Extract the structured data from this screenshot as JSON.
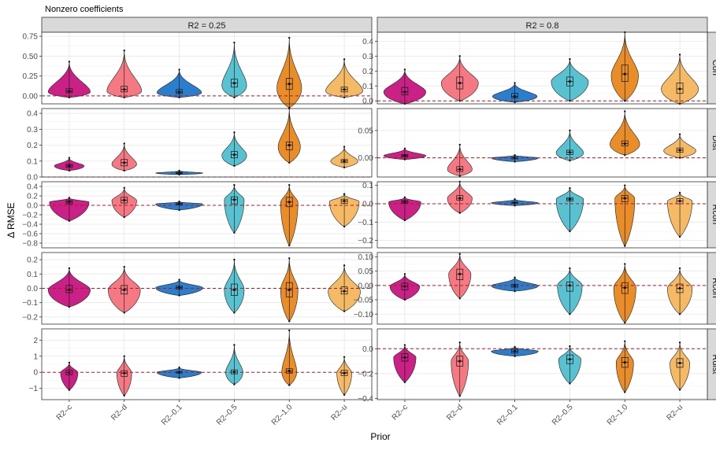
{
  "chart_data": {
    "type": "violin",
    "title": "Nonzero coefficients",
    "xlabel": "Prior",
    "ylabel": "Δ RMSE",
    "categories": [
      "R2–c",
      "R2–d",
      "R2–0.1",
      "R2–0.5",
      "R2–1.0",
      "R2–u"
    ],
    "column_facets": [
      "R2 = 0.25",
      "R2 = 0.8"
    ],
    "row_facets": [
      "Corr",
      "Dist",
      "Rcorr",
      "Rcorr",
      "Rdist"
    ],
    "reference_line": 0,
    "colors": [
      "#c7157f",
      "#f4727c",
      "#1f77c8",
      "#4fbfcf",
      "#e8871e",
      "#f4b65e"
    ],
    "panels": [
      {
        "col": 0,
        "row": 0,
        "ylim": [
          -0.1,
          0.8
        ],
        "ticks": [
          0.0,
          0.25,
          0.5,
          0.75
        ],
        "tick_labels": [
          "0.00",
          "0.25",
          "0.50",
          "0.75"
        ],
        "groups": [
          {
            "min": -0.02,
            "q1": 0.04,
            "median": 0.06,
            "q3": 0.09,
            "max": 0.43,
            "mode": 0.05,
            "width": 0.85
          },
          {
            "min": -0.02,
            "q1": 0.05,
            "median": 0.08,
            "q3": 0.12,
            "max": 0.57,
            "mode": 0.06,
            "width": 0.7
          },
          {
            "min": -0.02,
            "q1": 0.03,
            "median": 0.05,
            "q3": 0.08,
            "max": 0.33,
            "mode": 0.04,
            "width": 0.9
          },
          {
            "min": -0.02,
            "q1": 0.11,
            "median": 0.16,
            "q3": 0.21,
            "max": 0.67,
            "mode": 0.13,
            "width": 0.5
          },
          {
            "min": -0.15,
            "q1": 0.08,
            "median": 0.15,
            "q3": 0.22,
            "max": 0.73,
            "mode": 0.1,
            "width": 0.5
          },
          {
            "min": -0.02,
            "q1": 0.05,
            "median": 0.08,
            "q3": 0.11,
            "max": 0.46,
            "mode": 0.06,
            "width": 0.75
          }
        ]
      },
      {
        "col": 0,
        "row": 1,
        "ylim": [
          0.0,
          0.43
        ],
        "ticks": [
          0.0,
          0.1,
          0.2,
          0.3,
          0.4
        ],
        "tick_labels": [
          "0.0",
          "0.1",
          "0.2",
          "0.3",
          "0.4"
        ],
        "groups": [
          {
            "min": 0.04,
            "q1": 0.06,
            "median": 0.07,
            "q3": 0.08,
            "max": 0.12,
            "mode": 0.07,
            "width": 0.6
          },
          {
            "min": 0.04,
            "q1": 0.07,
            "median": 0.09,
            "q3": 0.11,
            "max": 0.21,
            "mode": 0.08,
            "width": 0.5
          },
          {
            "min": 0.015,
            "q1": 0.02,
            "median": 0.025,
            "q3": 0.03,
            "max": 0.04,
            "mode": 0.025,
            "width": 0.95
          },
          {
            "min": 0.07,
            "q1": 0.12,
            "median": 0.14,
            "q3": 0.16,
            "max": 0.28,
            "mode": 0.135,
            "width": 0.5
          },
          {
            "min": 0.09,
            "q1": 0.17,
            "median": 0.2,
            "q3": 0.22,
            "max": 0.43,
            "mode": 0.19,
            "width": 0.45
          },
          {
            "min": 0.06,
            "q1": 0.09,
            "median": 0.1,
            "q3": 0.11,
            "max": 0.19,
            "mode": 0.1,
            "width": 0.55
          }
        ]
      },
      {
        "col": 0,
        "row": 2,
        "ylim": [
          -0.9,
          0.5
        ],
        "ticks": [
          -0.8,
          -0.6,
          -0.4,
          -0.2,
          0.0,
          0.2,
          0.4
        ],
        "tick_labels": [
          "−0.8",
          "−0.6",
          "−0.4",
          "−0.2",
          "0.0",
          "0.2",
          "0.4"
        ],
        "groups": [
          {
            "min": -0.33,
            "q1": 0.03,
            "median": 0.07,
            "q3": 0.1,
            "max": 0.16,
            "mode": 0.07,
            "width": 0.8
          },
          {
            "min": -0.25,
            "q1": 0.05,
            "median": 0.11,
            "q3": 0.17,
            "max": 0.37,
            "mode": 0.1,
            "width": 0.5
          },
          {
            "min": -0.1,
            "q1": 0.01,
            "median": 0.03,
            "q3": 0.05,
            "max": 0.08,
            "mode": 0.03,
            "width": 0.95
          },
          {
            "min": -0.58,
            "q1": 0.03,
            "median": 0.12,
            "q3": 0.18,
            "max": 0.43,
            "mode": 0.12,
            "width": 0.4
          },
          {
            "min": -0.85,
            "q1": -0.03,
            "median": 0.07,
            "q3": 0.17,
            "max": 0.43,
            "mode": 0.06,
            "width": 0.35
          },
          {
            "min": -0.45,
            "q1": 0.04,
            "median": 0.09,
            "q3": 0.13,
            "max": 0.24,
            "mode": 0.08,
            "width": 0.6
          }
        ]
      },
      {
        "col": 0,
        "row": 3,
        "ylim": [
          -0.25,
          0.25
        ],
        "ticks": [
          -0.2,
          -0.1,
          0.0,
          0.1,
          0.2
        ],
        "tick_labels": [
          "−0.2",
          "−0.1",
          "0.0",
          "0.1",
          "0.2"
        ],
        "groups": [
          {
            "min": -0.13,
            "q1": -0.03,
            "median": -0.01,
            "q3": 0.02,
            "max": 0.14,
            "mode": -0.01,
            "width": 0.85
          },
          {
            "min": -0.17,
            "q1": -0.04,
            "median": -0.01,
            "q3": 0.02,
            "max": 0.15,
            "mode": -0.01,
            "width": 0.65
          },
          {
            "min": -0.05,
            "q1": -0.005,
            "median": 0.005,
            "q3": 0.015,
            "max": 0.06,
            "mode": 0.005,
            "width": 0.95
          },
          {
            "min": -0.17,
            "q1": -0.05,
            "median": -0.01,
            "q3": 0.03,
            "max": 0.2,
            "mode": -0.01,
            "width": 0.4
          },
          {
            "min": -0.23,
            "q1": -0.06,
            "median": -0.01,
            "q3": 0.04,
            "max": 0.21,
            "mode": -0.01,
            "width": 0.35
          },
          {
            "min": -0.16,
            "q1": -0.04,
            "median": -0.02,
            "q3": 0.01,
            "max": 0.16,
            "mode": -0.02,
            "width": 0.65
          }
        ]
      },
      {
        "col": 0,
        "row": 4,
        "ylim": [
          -1.7,
          2.7
        ],
        "ticks": [
          -1,
          0,
          1,
          2
        ],
        "tick_labels": [
          "−1",
          "0",
          "1",
          "2"
        ],
        "groups": [
          {
            "min": -1.1,
            "q1": -0.15,
            "median": -0.02,
            "q3": 0.12,
            "max": 0.6,
            "mode": -0.02,
            "width": 0.35
          },
          {
            "min": -1.45,
            "q1": -0.25,
            "median": -0.05,
            "q3": 0.1,
            "max": 1.0,
            "mode": -0.05,
            "width": 0.3
          },
          {
            "min": -0.35,
            "q1": -0.05,
            "median": 0.0,
            "q3": 0.05,
            "max": 0.3,
            "mode": 0.0,
            "width": 0.9
          },
          {
            "min": -0.75,
            "q1": -0.1,
            "median": 0.02,
            "q3": 0.15,
            "max": 1.7,
            "mode": 0.0,
            "width": 0.35
          },
          {
            "min": -0.8,
            "q1": -0.05,
            "median": 0.08,
            "q3": 0.22,
            "max": 2.6,
            "mode": 0.05,
            "width": 0.3
          },
          {
            "min": -1.4,
            "q1": -0.2,
            "median": -0.05,
            "q3": 0.12,
            "max": 0.95,
            "mode": -0.05,
            "width": 0.3
          }
        ]
      },
      {
        "col": 1,
        "row": 0,
        "ylim": [
          -0.02,
          0.46
        ],
        "ticks": [
          0.0,
          0.1,
          0.2,
          0.3,
          0.4
        ],
        "tick_labels": [
          "0.0",
          "0.1",
          "0.2",
          "0.3",
          "0.4"
        ],
        "groups": [
          {
            "min": -0.02,
            "q1": 0.04,
            "median": 0.06,
            "q3": 0.09,
            "max": 0.21,
            "mode": 0.06,
            "width": 0.85
          },
          {
            "min": 0.0,
            "q1": 0.08,
            "median": 0.12,
            "q3": 0.16,
            "max": 0.3,
            "mode": 0.12,
            "width": 0.75
          },
          {
            "min": -0.01,
            "q1": 0.02,
            "median": 0.03,
            "q3": 0.05,
            "max": 0.12,
            "mode": 0.03,
            "width": 0.9
          },
          {
            "min": 0.0,
            "q1": 0.1,
            "median": 0.13,
            "q3": 0.16,
            "max": 0.28,
            "mode": 0.13,
            "width": 0.75
          },
          {
            "min": 0.0,
            "q1": 0.13,
            "median": 0.18,
            "q3": 0.24,
            "max": 0.46,
            "mode": 0.17,
            "width": 0.55
          },
          {
            "min": -0.02,
            "q1": 0.05,
            "median": 0.08,
            "q3": 0.12,
            "max": 0.31,
            "mode": 0.08,
            "width": 0.75
          }
        ]
      },
      {
        "col": 1,
        "row": 1,
        "ylim": [
          -0.035,
          0.09
        ],
        "ticks": [
          0.0,
          0.05
        ],
        "tick_labels": [
          "0.00",
          "0.05"
        ],
        "groups": [
          {
            "min": -0.003,
            "q1": 0.002,
            "median": 0.004,
            "q3": 0.006,
            "max": 0.017,
            "mode": 0.004,
            "width": 0.85
          },
          {
            "min": -0.033,
            "q1": -0.025,
            "median": -0.021,
            "q3": -0.016,
            "max": 0.024,
            "mode": -0.021,
            "width": 0.5
          },
          {
            "min": -0.007,
            "q1": -0.002,
            "median": 0.0,
            "q3": 0.001,
            "max": 0.005,
            "mode": 0.0,
            "width": 0.95
          },
          {
            "min": -0.005,
            "q1": 0.006,
            "median": 0.01,
            "q3": 0.014,
            "max": 0.05,
            "mode": 0.009,
            "width": 0.55
          },
          {
            "min": 0.005,
            "q1": 0.022,
            "median": 0.026,
            "q3": 0.031,
            "max": 0.085,
            "mode": 0.025,
            "width": 0.6
          },
          {
            "min": 0.0,
            "q1": 0.01,
            "median": 0.014,
            "q3": 0.018,
            "max": 0.043,
            "mode": 0.013,
            "width": 0.65
          }
        ]
      },
      {
        "col": 1,
        "row": 2,
        "ylim": [
          -0.24,
          0.12
        ],
        "ticks": [
          -0.2,
          -0.1,
          0.0,
          0.1
        ],
        "tick_labels": [
          "−0.2",
          "−0.1",
          "0.0",
          "0.1"
        ],
        "groups": [
          {
            "min": -0.09,
            "q1": 0.003,
            "median": 0.01,
            "q3": 0.018,
            "max": 0.035,
            "mode": 0.01,
            "width": 0.65
          },
          {
            "min": -0.05,
            "q1": 0.02,
            "median": 0.03,
            "q3": 0.045,
            "max": 0.12,
            "mode": 0.03,
            "width": 0.5
          },
          {
            "min": -0.01,
            "q1": 0.001,
            "median": 0.005,
            "q3": 0.009,
            "max": 0.025,
            "mode": 0.005,
            "width": 0.95
          },
          {
            "min": -0.15,
            "q1": 0.015,
            "median": 0.025,
            "q3": 0.033,
            "max": 0.085,
            "mode": 0.025,
            "width": 0.55
          },
          {
            "min": -0.23,
            "q1": 0.01,
            "median": 0.03,
            "q3": 0.045,
            "max": 0.1,
            "mode": 0.03,
            "width": 0.4
          },
          {
            "min": -0.18,
            "q1": 0.0,
            "median": 0.015,
            "q3": 0.028,
            "max": 0.06,
            "mode": 0.015,
            "width": 0.5
          }
        ]
      },
      {
        "col": 1,
        "row": 3,
        "ylim": [
          -0.135,
          0.115
        ],
        "ticks": [
          -0.1,
          -0.05,
          0.0,
          0.05,
          0.1
        ],
        "tick_labels": [
          "−0.10",
          "−0.05",
          "0.00",
          "0.05",
          "0.10"
        ],
        "groups": [
          {
            "min": -0.05,
            "q1": -0.015,
            "median": -0.003,
            "q3": 0.008,
            "max": 0.04,
            "mode": -0.003,
            "width": 0.6
          },
          {
            "min": -0.045,
            "q1": 0.02,
            "median": 0.04,
            "q3": 0.057,
            "max": 0.11,
            "mode": 0.04,
            "width": 0.45
          },
          {
            "min": -0.02,
            "q1": -0.006,
            "median": -0.001,
            "q3": 0.004,
            "max": 0.028,
            "mode": -0.001,
            "width": 0.95
          },
          {
            "min": -0.1,
            "q1": -0.02,
            "median": 0.0,
            "q3": 0.012,
            "max": 0.06,
            "mode": 0.0,
            "width": 0.5
          },
          {
            "min": -0.13,
            "q1": -0.028,
            "median": -0.008,
            "q3": 0.01,
            "max": 0.075,
            "mode": -0.008,
            "width": 0.45
          },
          {
            "min": -0.1,
            "q1": -0.025,
            "median": -0.01,
            "q3": 0.005,
            "max": 0.06,
            "mode": -0.01,
            "width": 0.5
          }
        ]
      },
      {
        "col": 1,
        "row": 4,
        "ylim": [
          -0.41,
          0.16
        ],
        "ticks": [
          -0.4,
          -0.2,
          0.0
        ],
        "tick_labels": [
          "−0.4",
          "−0.2",
          "0.0"
        ],
        "groups": [
          {
            "min": -0.27,
            "q1": -0.1,
            "median": -0.07,
            "q3": -0.04,
            "max": 0.03,
            "mode": -0.07,
            "width": 0.45
          },
          {
            "min": -0.38,
            "q1": -0.14,
            "median": -0.1,
            "q3": -0.06,
            "max": 0.05,
            "mode": -0.1,
            "width": 0.35
          },
          {
            "min": -0.06,
            "q1": -0.035,
            "median": -0.02,
            "q3": -0.005,
            "max": 0.015,
            "mode": -0.02,
            "width": 0.95
          },
          {
            "min": -0.28,
            "q1": -0.12,
            "median": -0.085,
            "q3": -0.05,
            "max": 0.02,
            "mode": -0.085,
            "width": 0.45
          },
          {
            "min": -0.35,
            "q1": -0.15,
            "median": -0.11,
            "q3": -0.07,
            "max": 0.06,
            "mode": -0.11,
            "width": 0.35
          },
          {
            "min": -0.33,
            "q1": -0.15,
            "median": -0.115,
            "q3": -0.08,
            "max": 0.05,
            "mode": -0.115,
            "width": 0.4
          }
        ]
      }
    ]
  }
}
